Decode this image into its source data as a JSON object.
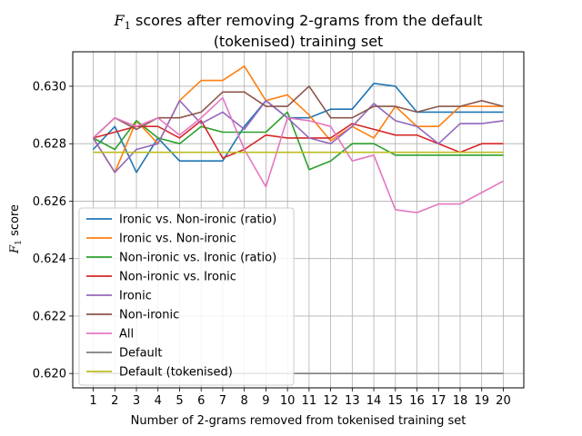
{
  "chart_data": {
    "type": "line",
    "title_line1_pre": "F",
    "title_line1_sub": "1",
    "title_line1_post": " scores after removing 2-grams from the default",
    "title_line2": "(tokenised) training set",
    "xlabel": "Number of 2-grams removed from tokenised training set",
    "ylabel_pre": "F",
    "ylabel_sub": "1",
    "ylabel_post": " score",
    "x": [
      1,
      2,
      3,
      4,
      5,
      6,
      7,
      8,
      9,
      10,
      11,
      12,
      13,
      14,
      15,
      16,
      17,
      18,
      19,
      20
    ],
    "xlim": [
      0.05,
      20.95
    ],
    "ylim": [
      0.6195,
      0.6312
    ],
    "yticks": [
      "0.620",
      "0.622",
      "0.624",
      "0.626",
      "0.628",
      "0.630"
    ],
    "ytick_values": [
      0.62,
      0.622,
      0.624,
      0.626,
      0.628,
      0.63
    ],
    "grid": true,
    "legend_position": "lower-left",
    "series": [
      {
        "name": "Ironic vs. Non-ironic (ratio)",
        "color": "#1f77b4",
        "values": [
          0.6278,
          0.6286,
          0.627,
          0.6282,
          0.6274,
          0.6274,
          0.6274,
          0.6286,
          0.6295,
          0.6289,
          0.6289,
          0.6292,
          0.6292,
          0.6301,
          0.63,
          0.6291,
          0.6291,
          0.6291,
          0.6291,
          0.6291
        ]
      },
      {
        "name": "Ironic vs. Non-ironic",
        "color": "#ff7f0e",
        "values": [
          0.6282,
          0.627,
          0.6288,
          0.628,
          0.6295,
          0.6302,
          0.6302,
          0.6307,
          0.6295,
          0.6297,
          0.629,
          0.6281,
          0.6286,
          0.6282,
          0.6293,
          0.6286,
          0.6286,
          0.6293,
          0.6293,
          0.6293
        ]
      },
      {
        "name": "Non-ironic vs. Ironic (ratio)",
        "color": "#2ca02c",
        "values": [
          0.6282,
          0.6278,
          0.6288,
          0.6282,
          0.628,
          0.6286,
          0.6284,
          0.6284,
          0.6284,
          0.6291,
          0.6271,
          0.6274,
          0.628,
          0.628,
          0.6276,
          0.6276,
          0.6276,
          0.6276,
          0.6276,
          0.6276
        ]
      },
      {
        "name": "Non-ironic vs. Ironic",
        "color": "#d62728",
        "values": [
          0.6282,
          0.6284,
          0.6286,
          0.6286,
          0.6282,
          0.6288,
          0.6275,
          0.6278,
          0.6283,
          0.6282,
          0.6282,
          0.6282,
          0.6287,
          0.6285,
          0.6283,
          0.6283,
          0.628,
          0.6277,
          0.628,
          0.628
        ]
      },
      {
        "name": "Ironic",
        "color": "#9467bd",
        "values": [
          0.6282,
          0.627,
          0.6278,
          0.628,
          0.6295,
          0.6287,
          0.6291,
          0.6285,
          0.6295,
          0.6289,
          0.6282,
          0.628,
          0.6286,
          0.6294,
          0.6288,
          0.6286,
          0.628,
          0.6287,
          0.6287,
          0.6288
        ]
      },
      {
        "name": "Non-ironic",
        "color": "#8c564b",
        "values": [
          0.6282,
          0.6289,
          0.6285,
          0.6289,
          0.6289,
          0.6291,
          0.6298,
          0.6298,
          0.6293,
          0.6293,
          0.63,
          0.6289,
          0.6289,
          0.6293,
          0.6293,
          0.6291,
          0.6293,
          0.6293,
          0.6295,
          0.6293
        ]
      },
      {
        "name": "All",
        "color": "#e377c2",
        "values": [
          0.6282,
          0.6289,
          0.6286,
          0.6289,
          0.6283,
          0.6289,
          0.6296,
          0.6278,
          0.6265,
          0.6289,
          0.6288,
          0.6286,
          0.6274,
          0.6276,
          0.6257,
          0.6256,
          0.6259,
          0.6259,
          0.6263,
          0.6267
        ]
      },
      {
        "name": "Default",
        "color": "#7f7f7f",
        "values": [
          0.62,
          0.62,
          0.62,
          0.62,
          0.62,
          0.62,
          0.62,
          0.62,
          0.62,
          0.62,
          0.62,
          0.62,
          0.62,
          0.62,
          0.62,
          0.62,
          0.62,
          0.62,
          0.62,
          0.62
        ]
      },
      {
        "name": "Default (tokenised)",
        "color": "#bcbd22",
        "values": [
          0.6277,
          0.6277,
          0.6277,
          0.6277,
          0.6277,
          0.6277,
          0.6277,
          0.6277,
          0.6277,
          0.6277,
          0.6277,
          0.6277,
          0.6277,
          0.6277,
          0.6277,
          0.6277,
          0.6277,
          0.6277,
          0.6277,
          0.6277
        ]
      }
    ]
  }
}
